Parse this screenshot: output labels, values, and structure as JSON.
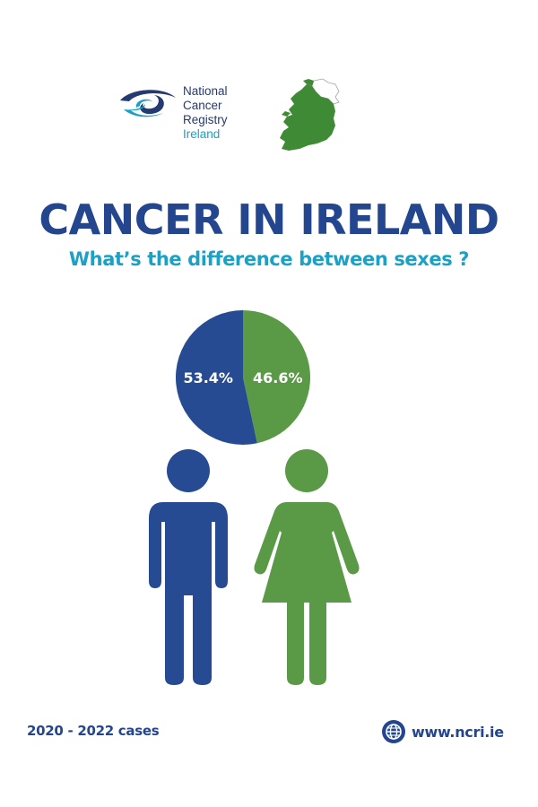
{
  "logo": {
    "line1": "National",
    "line2": "Cancer",
    "line3": "Registry",
    "line4": "Ireland",
    "icon": "eye-swirl-logo-icon"
  },
  "map_icon": "ireland-map-icon",
  "title": "CANCER IN IRELAND",
  "subtitle": "What’s the difference between sexes ?",
  "colors": {
    "male": "#274b92",
    "female": "#5a9a46",
    "title": "#23468f",
    "subtitle": "#1ba1c6"
  },
  "chart_data": {
    "type": "pie",
    "slices": [
      {
        "value": 53.4,
        "label": "53.4%",
        "color": "#274b92",
        "icon": "male-figure-icon"
      },
      {
        "value": 46.6,
        "label": "46.6%",
        "color": "#5a9a46",
        "icon": "female-figure-icon"
      }
    ]
  },
  "footer": {
    "period": "2020 - 2022 cases",
    "website": "www.ncri.ie",
    "website_icon": "globe-icon"
  }
}
